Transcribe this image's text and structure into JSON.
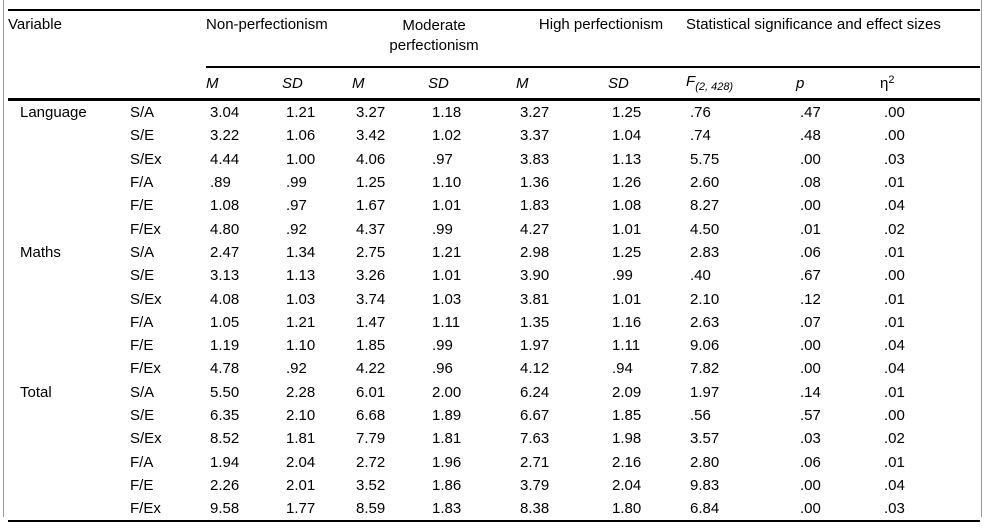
{
  "meta": {
    "background": "#ffffff",
    "rule_color": "#000000",
    "frame_color": "#9b9b9b",
    "text_color": "#000000"
  },
  "table": {
    "variable_header": "Variable",
    "group_headers": {
      "non_perfectionism": "Non-perfectionism",
      "moderate_perfectionism": "Moderate perfectionism",
      "high_perfectionism": "High perfectionism",
      "statistics": "Statistical significance and effect sizes"
    },
    "stat_columns": {
      "mean": "M",
      "sd": "SD",
      "f_base": "F",
      "f_subscript": "(2, 428)",
      "p": "p",
      "eta_base": "η",
      "eta_superscript": "2"
    },
    "sections": [
      {
        "label": "Language",
        "rows": [
          {
            "sub": "S/A",
            "values": [
              "3.04",
              "1.21",
              "3.27",
              "1.18",
              "3.27",
              "1.25",
              ".76",
              ".47",
              ".00"
            ]
          },
          {
            "sub": "S/E",
            "values": [
              "3.22",
              "1.06",
              "3.42",
              "1.02",
              "3.37",
              "1.04",
              ".74",
              ".48",
              ".00"
            ]
          },
          {
            "sub": "S/Ex",
            "values": [
              "4.44",
              "1.00",
              "4.06",
              ".97",
              "3.83",
              "1.13",
              "5.75",
              ".00",
              ".03"
            ]
          },
          {
            "sub": "F/A",
            "values": [
              ".89",
              ".99",
              "1.25",
              "1.10",
              "1.36",
              "1.26",
              "2.60",
              ".08",
              ".01"
            ]
          },
          {
            "sub": "F/E",
            "values": [
              "1.08",
              ".97",
              "1.67",
              "1.01",
              "1.83",
              "1.08",
              "8.27",
              ".00",
              ".04"
            ]
          },
          {
            "sub": "F/Ex",
            "values": [
              "4.80",
              ".92",
              "4.37",
              ".99",
              "4.27",
              "1.01",
              "4.50",
              ".01",
              ".02"
            ]
          }
        ]
      },
      {
        "label": "Maths",
        "rows": [
          {
            "sub": "S/A",
            "values": [
              "2.47",
              "1.34",
              "2.75",
              "1.21",
              "2.98",
              "1.25",
              "2.83",
              ".06",
              ".01"
            ]
          },
          {
            "sub": "S/E",
            "values": [
              "3.13",
              "1.13",
              "3.26",
              "1.01",
              "3.90",
              ".99",
              ".40",
              ".67",
              ".00"
            ]
          },
          {
            "sub": "S/Ex",
            "values": [
              "4.08",
              "1.03",
              "3.74",
              "1.03",
              "3.81",
              "1.01",
              "2.10",
              ".12",
              ".01"
            ]
          },
          {
            "sub": "F/A",
            "values": [
              "1.05",
              "1.21",
              "1.47",
              "1.11",
              "1.35",
              "1.16",
              "2.63",
              ".07",
              ".01"
            ]
          },
          {
            "sub": "F/E",
            "values": [
              "1.19",
              "1.10",
              "1.85",
              ".99",
              "1.97",
              "1.11",
              "9.06",
              ".00",
              ".04"
            ]
          },
          {
            "sub": "F/Ex",
            "values": [
              "4.78",
              ".92",
              "4.22",
              ".96",
              "4.12",
              ".94",
              "7.82",
              ".00",
              ".04"
            ]
          }
        ]
      },
      {
        "label": "Total",
        "rows": [
          {
            "sub": "S/A",
            "values": [
              "5.50",
              "2.28",
              "6.01",
              "2.00",
              "6.24",
              "2.09",
              "1.97",
              ".14",
              ".01"
            ]
          },
          {
            "sub": "S/E",
            "values": [
              "6.35",
              "2.10",
              "6.68",
              "1.89",
              "6.67",
              "1.85",
              ".56",
              ".57",
              ".00"
            ]
          },
          {
            "sub": "S/Ex",
            "values": [
              "8.52",
              "1.81",
              "7.79",
              "1.81",
              "7.63",
              "1.98",
              "3.57",
              ".03",
              ".02"
            ]
          },
          {
            "sub": "F/A",
            "values": [
              "1.94",
              "2.04",
              "2.72",
              "1.96",
              "2.71",
              "2.16",
              "2.80",
              ".06",
              ".01"
            ]
          },
          {
            "sub": "F/E",
            "values": [
              "2.26",
              "2.01",
              "3.52",
              "1.86",
              "3.79",
              "2.04",
              "9.83",
              ".00",
              ".04"
            ]
          },
          {
            "sub": "F/Ex",
            "values": [
              "9.58",
              "1.77",
              "8.59",
              "1.83",
              "8.38",
              "1.80",
              "6.84",
              ".00",
              ".03"
            ]
          }
        ]
      }
    ]
  }
}
